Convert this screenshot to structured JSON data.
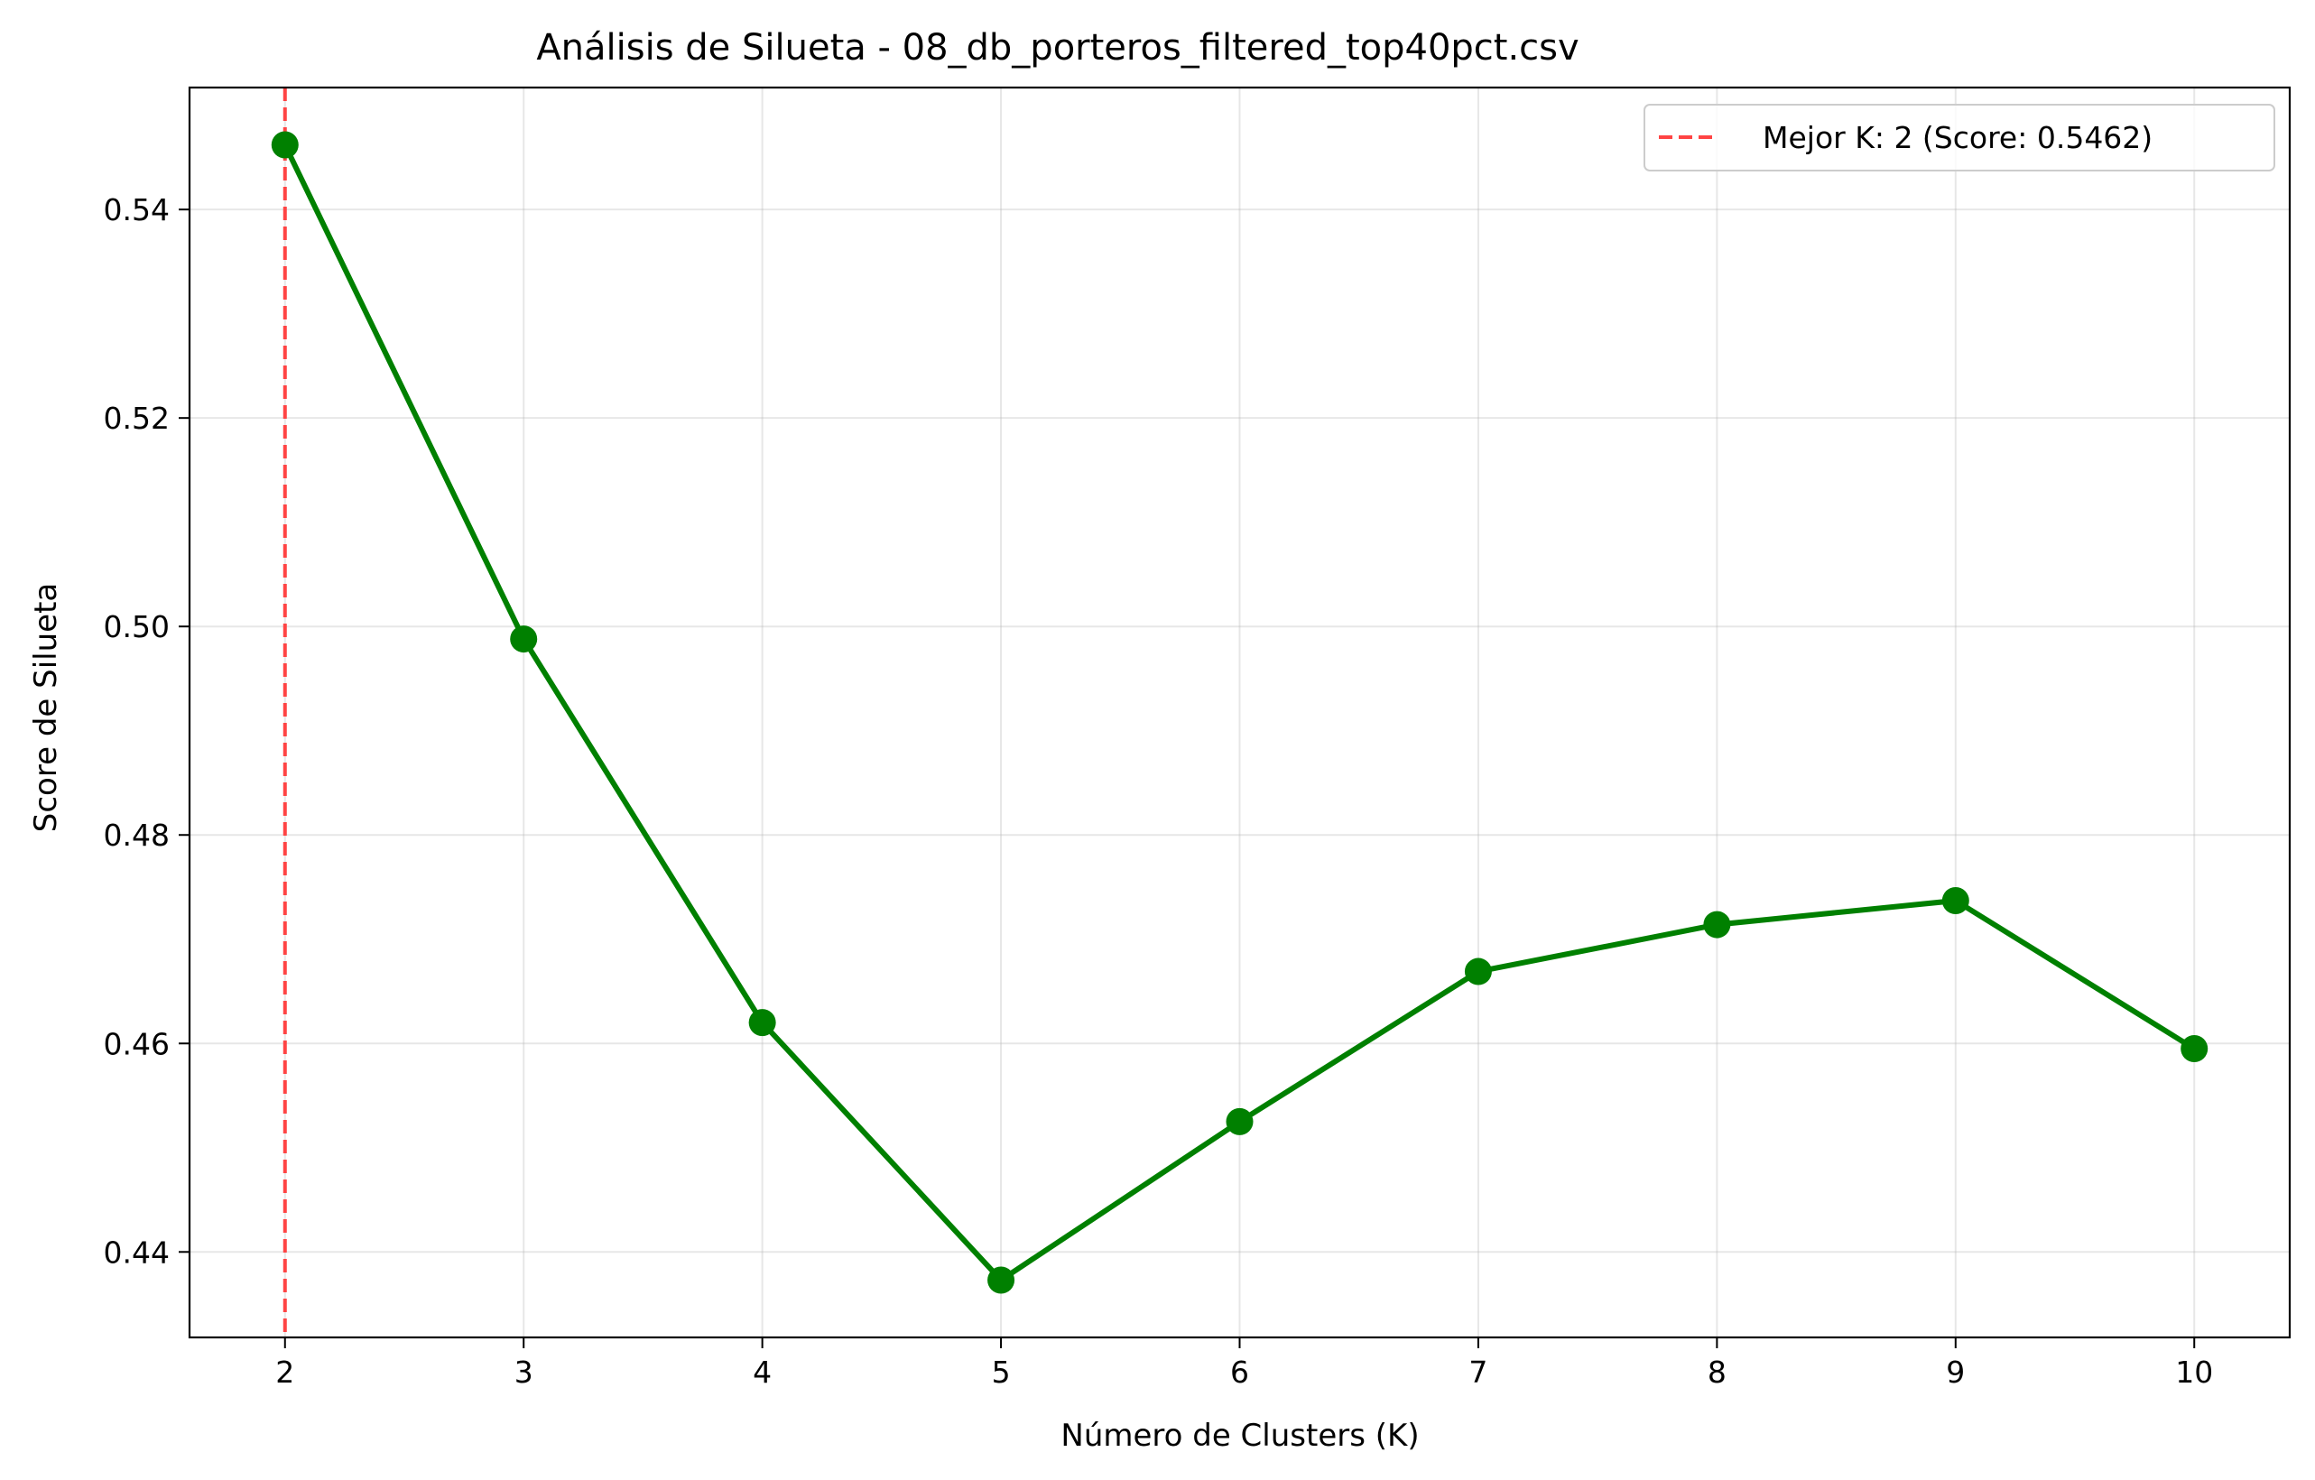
{
  "chart_data": {
    "type": "line",
    "title": "Análisis de Silueta - 08_db_porteros_filtered_top40pct.csv",
    "xlabel": "Número de Clusters (K)",
    "ylabel": "Score de Silueta",
    "x": [
      2,
      3,
      4,
      5,
      6,
      7,
      8,
      9,
      10
    ],
    "series": [
      {
        "values": [
          0.5462,
          0.4988,
          0.462,
          0.4373,
          0.4525,
          0.4669,
          0.4714,
          0.4737,
          0.4595
        ],
        "color": "#008000",
        "marker": "circle",
        "line_style": "solid"
      }
    ],
    "reference_line": {
      "orientation": "vertical",
      "x": 2,
      "color": "#ff4444",
      "style": "dashed",
      "legend_label": "Mejor K: 2 (Score: 0.5462)"
    },
    "xlim": [
      1.6,
      10.4
    ],
    "ylim": [
      0.4318,
      0.5517
    ],
    "xticks": [
      "2",
      "3",
      "4",
      "5",
      "6",
      "7",
      "8",
      "9",
      "10"
    ],
    "yticks": [
      "0.44",
      "0.46",
      "0.48",
      "0.50",
      "0.52",
      "0.54"
    ],
    "grid": true,
    "legend_position": "top-right"
  }
}
